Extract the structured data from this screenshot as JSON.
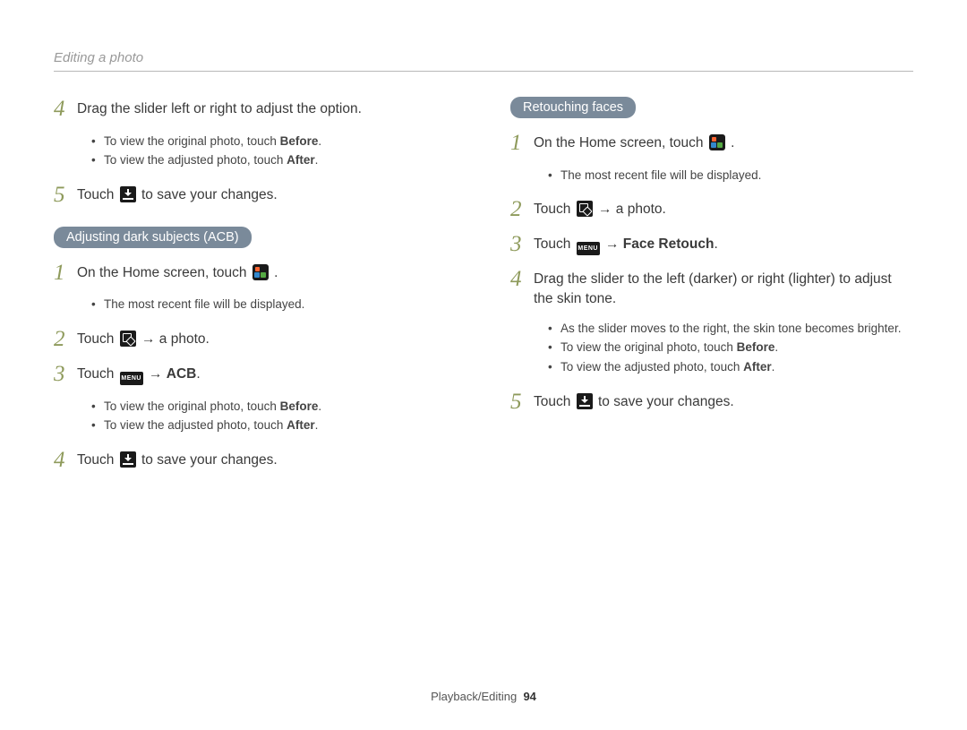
{
  "header": {
    "section_title": "Editing a photo"
  },
  "colors": {
    "step_number": "#8e9a5b",
    "pill_bg": "#7a8a9a",
    "pill_text": "#ffffff",
    "rule": "#b8b8b8",
    "section_title": "#999999",
    "body_text": "#3a3a3a"
  },
  "left": {
    "initial_steps": [
      {
        "num": "4",
        "text_before": "Drag the slider left or right to adjust the option.",
        "bullets": [
          {
            "pre": "To view the original photo, touch ",
            "bold": "Before",
            "post": "."
          },
          {
            "pre": "To view the adjusted photo, touch ",
            "bold": "After",
            "post": "."
          }
        ]
      },
      {
        "num": "5",
        "text_before": "Touch ",
        "icon": "save",
        "text_after": " to save your changes."
      }
    ],
    "pill": "Adjusting dark subjects (ACB)",
    "acb_steps": [
      {
        "num": "1",
        "text_before": "On the Home screen, touch ",
        "icon": "gallery",
        "text_after": ".",
        "bullets": [
          {
            "pre": "The most recent file will be displayed.",
            "bold": "",
            "post": ""
          }
        ]
      },
      {
        "num": "2",
        "text_before": "Touch ",
        "icon": "edit",
        "arrow": " → ",
        "text_after": "a photo."
      },
      {
        "num": "3",
        "text_before": "Touch ",
        "icon": "menu",
        "arrow": " → ",
        "bold": "ACB",
        "post": ".",
        "bullets": [
          {
            "pre": "To view the original photo, touch ",
            "bold": "Before",
            "post": "."
          },
          {
            "pre": "To view the adjusted photo, touch ",
            "bold": "After",
            "post": "."
          }
        ]
      },
      {
        "num": "4",
        "text_before": "Touch ",
        "icon": "save",
        "text_after": " to save your changes."
      }
    ]
  },
  "right": {
    "pill": "Retouching faces",
    "steps": [
      {
        "num": "1",
        "text_before": "On the Home screen, touch ",
        "icon": "gallery",
        "text_after": ".",
        "bullets": [
          {
            "pre": "The most recent file will be displayed.",
            "bold": "",
            "post": ""
          }
        ]
      },
      {
        "num": "2",
        "text_before": "Touch ",
        "icon": "edit",
        "arrow": " → ",
        "text_after": "a photo."
      },
      {
        "num": "3",
        "text_before": "Touch ",
        "icon": "menu",
        "arrow": " → ",
        "bold": "Face Retouch",
        "post": "."
      },
      {
        "num": "4",
        "text_before": "Drag the slider to the left (darker) or right (lighter) to adjust the skin tone.",
        "bullets": [
          {
            "pre": "As the slider moves to the right, the skin tone becomes brighter.",
            "bold": "",
            "post": ""
          },
          {
            "pre": "To view the original photo, touch ",
            "bold": "Before",
            "post": "."
          },
          {
            "pre": "To view the adjusted photo, touch ",
            "bold": "After",
            "post": "."
          }
        ]
      },
      {
        "num": "5",
        "text_before": "Touch ",
        "icon": "save",
        "text_after": " to save your changes."
      }
    ]
  },
  "footer": {
    "section": "Playback/Editing",
    "page": "94"
  },
  "icon_labels": {
    "menu": "MENU"
  }
}
